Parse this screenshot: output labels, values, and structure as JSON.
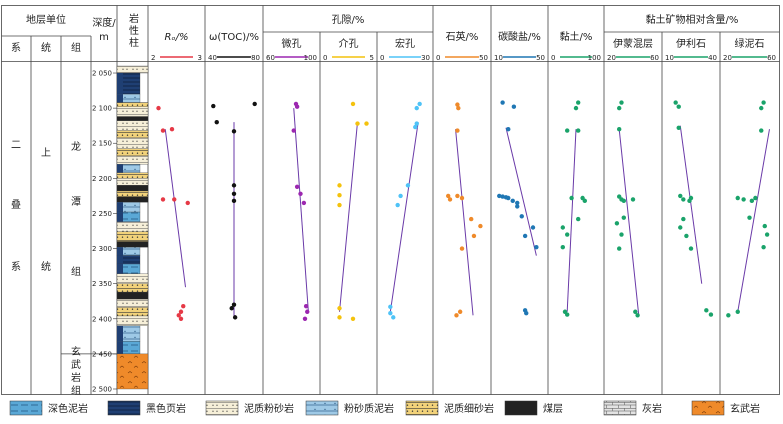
{
  "header": {
    "strat_unit": "地层单位",
    "system": "系",
    "series": "统",
    "formation": "组",
    "depth": "深度/",
    "depth_unit": "m",
    "lith_l1": "岩",
    "lith_l2": "性",
    "lith_l3": "柱",
    "ro": "Rₒ/%",
    "toc": "ω(TOC)/%",
    "porosity": "孔隙/%",
    "quartz": "石英/%",
    "carbonate": "碳酸盐/%",
    "clay": "黏土/%",
    "clay_minerals": "黏土矿物相对含量/%"
  },
  "strat": {
    "system": [
      "二",
      "叠",
      "系"
    ],
    "series": [
      "上",
      "统"
    ],
    "formation1": [
      "龙",
      "潭",
      "组"
    ],
    "formation2": [
      "玄",
      "武",
      "岩",
      "组"
    ]
  },
  "depth_ticks": [
    "2 050",
    "2 100",
    "2 150",
    "2 200",
    "2 250",
    "2 300",
    "2 350",
    "2 400",
    "2 450",
    "2 500"
  ],
  "legend": [
    {
      "label": "深色泥岩",
      "pattern": "dark-mudstone"
    },
    {
      "label": "黑色页岩",
      "pattern": "black-shale"
    },
    {
      "label": "泥质粉砂岩",
      "pattern": "argillaceous-siltstone"
    },
    {
      "label": "粉砂质泥岩",
      "pattern": "silty-mudstone"
    },
    {
      "label": "泥质细砂岩",
      "pattern": "argillaceous-fine-sandstone"
    },
    {
      "label": "煤层",
      "pattern": "coal"
    },
    {
      "label": "灰岩",
      "pattern": "limestone"
    },
    {
      "label": "玄武岩",
      "pattern": "basalt"
    }
  ],
  "chart_data": {
    "type": "scatter",
    "y_axis": {
      "label": "深度/m",
      "range": [
        2040,
        2500
      ],
      "inverted": true
    },
    "tracks": [
      {
        "id": "ro",
        "label": "Rₒ/%",
        "min": 2,
        "max": 3,
        "ticks": [
          "2",
          "3"
        ],
        "color": "#e63946",
        "points": [
          [
            2.1,
            2100
          ],
          [
            2.2,
            2132
          ],
          [
            2.4,
            2130
          ],
          [
            2.2,
            2230
          ],
          [
            2.45,
            2230
          ],
          [
            2.75,
            2235
          ],
          [
            2.65,
            2382
          ],
          [
            2.6,
            2390
          ],
          [
            2.55,
            2395
          ],
          [
            2.6,
            2400
          ]
        ],
        "trend": [
          [
            2.25,
            2130
          ],
          [
            2.7,
            2355
          ]
        ]
      },
      {
        "id": "toc",
        "label": "ω(TOC)/%",
        "min": 40,
        "max": 80,
        "ticks": [
          "40",
          "80"
        ],
        "color": "#111111",
        "points": [
          [
            42,
            2097
          ],
          [
            45,
            2120
          ],
          [
            78,
            2094
          ],
          [
            60,
            2133
          ],
          [
            60,
            2210
          ],
          [
            60,
            2222
          ],
          [
            60,
            2232
          ],
          [
            58,
            2385
          ],
          [
            60,
            2380
          ],
          [
            61,
            2398
          ]
        ],
        "trend": [
          [
            60,
            2120
          ],
          [
            60,
            2400
          ]
        ]
      },
      {
        "id": "micropore",
        "label": "微孔",
        "min": 60,
        "max": 100,
        "ticks": [
          "60",
          "100"
        ],
        "color": "#9c27b0",
        "points": [
          [
            84,
            2094
          ],
          [
            85,
            2098
          ],
          [
            82,
            2132
          ],
          [
            85,
            2212
          ],
          [
            88,
            2222
          ],
          [
            91,
            2235
          ],
          [
            93,
            2382
          ],
          [
            94,
            2390
          ],
          [
            92,
            2400
          ]
        ],
        "trend": [
          [
            82,
            2100
          ],
          [
            95,
            2390
          ]
        ]
      },
      {
        "id": "mesopore",
        "label": "介孔",
        "min": 0,
        "max": 5,
        "ticks": [
          "0",
          "5"
        ],
        "color": "#f4c20d",
        "points": [
          [
            3,
            2094
          ],
          [
            3.5,
            2122
          ],
          [
            4.5,
            2122
          ],
          [
            1.5,
            2210
          ],
          [
            1.5,
            2224
          ],
          [
            1.5,
            2238
          ],
          [
            1.5,
            2385
          ],
          [
            1.5,
            2398
          ],
          [
            3,
            2400
          ]
        ],
        "trend": [
          [
            3.5,
            2120
          ],
          [
            1.5,
            2390
          ]
        ]
      },
      {
        "id": "macropore",
        "label": "宏孔",
        "min": 0,
        "max": 30,
        "ticks": [
          "0",
          "30"
        ],
        "color": "#4fc3f7",
        "points": [
          [
            25,
            2094
          ],
          [
            23,
            2100
          ],
          [
            23,
            2122
          ],
          [
            22,
            2127
          ],
          [
            17,
            2210
          ],
          [
            12,
            2225
          ],
          [
            10,
            2238
          ],
          [
            5,
            2383
          ],
          [
            5,
            2392
          ],
          [
            7,
            2398
          ]
        ],
        "trend": [
          [
            24,
            2120
          ],
          [
            5,
            2390
          ]
        ]
      },
      {
        "id": "quartz",
        "label": "石英/%",
        "min": 0,
        "max": 50,
        "ticks": [
          "0",
          "50"
        ],
        "color": "#ef8a2a",
        "points": [
          [
            20,
            2095
          ],
          [
            21,
            2100
          ],
          [
            20,
            2132
          ],
          [
            10,
            2225
          ],
          [
            12,
            2230
          ],
          [
            20,
            2225
          ],
          [
            25,
            2228
          ],
          [
            35,
            2258
          ],
          [
            45,
            2268
          ],
          [
            38,
            2282
          ],
          [
            25,
            2300
          ],
          [
            23,
            2390
          ],
          [
            19,
            2395
          ]
        ],
        "trend": [
          [
            18,
            2130
          ],
          [
            37,
            2395
          ]
        ]
      },
      {
        "id": "carbonate",
        "label": "碳酸盐/%",
        "min": 10,
        "max": 50,
        "ticks": [
          "10",
          "50"
        ],
        "color": "#1f77b4",
        "points": [
          [
            15,
            2092
          ],
          [
            25,
            2098
          ],
          [
            20,
            2130
          ],
          [
            12,
            2225
          ],
          [
            15,
            2226
          ],
          [
            18,
            2227
          ],
          [
            20,
            2228
          ],
          [
            24,
            2232
          ],
          [
            28,
            2235
          ],
          [
            28,
            2240
          ],
          [
            32,
            2254
          ],
          [
            42,
            2270
          ],
          [
            35,
            2282
          ],
          [
            45,
            2298
          ],
          [
            35,
            2388
          ],
          [
            36,
            2392
          ]
        ],
        "trend": [
          [
            18,
            2128
          ],
          [
            45,
            2310
          ]
        ]
      },
      {
        "id": "clay",
        "label": "黏土/%",
        "min": 0,
        "max": 100,
        "ticks": [
          "0",
          "100"
        ],
        "color": "#1aa36a",
        "points": [
          [
            55,
            2092
          ],
          [
            50,
            2100
          ],
          [
            30,
            2132
          ],
          [
            55,
            2132
          ],
          [
            40,
            2228
          ],
          [
            65,
            2228
          ],
          [
            70,
            2232
          ],
          [
            55,
            2258
          ],
          [
            20,
            2270
          ],
          [
            30,
            2280
          ],
          [
            20,
            2298
          ],
          [
            25,
            2390
          ],
          [
            30,
            2394
          ]
        ],
        "trend": [
          [
            50,
            2130
          ],
          [
            30,
            2390
          ]
        ]
      },
      {
        "id": "illite_smectite",
        "label": "伊蒙混层",
        "min": 20,
        "max": 60,
        "ticks": [
          "20",
          "60"
        ],
        "color": "#1aa36a",
        "points": [
          [
            30,
            2092
          ],
          [
            28,
            2100
          ],
          [
            28,
            2130
          ],
          [
            28,
            2226
          ],
          [
            30,
            2230
          ],
          [
            32,
            2232
          ],
          [
            40,
            2230
          ],
          [
            32,
            2256
          ],
          [
            26,
            2264
          ],
          [
            30,
            2280
          ],
          [
            28,
            2300
          ],
          [
            42,
            2390
          ],
          [
            44,
            2395
          ]
        ],
        "trend": [
          [
            28,
            2130
          ],
          [
            45,
            2395
          ]
        ]
      },
      {
        "id": "illite",
        "label": "伊利石",
        "min": 10,
        "max": 40,
        "ticks": [
          "10",
          "40"
        ],
        "color": "#1aa36a",
        "points": [
          [
            15,
            2092
          ],
          [
            17,
            2098
          ],
          [
            17,
            2128
          ],
          [
            18,
            2225
          ],
          [
            20,
            2230
          ],
          [
            24,
            2232
          ],
          [
            25,
            2228
          ],
          [
            20,
            2258
          ],
          [
            18,
            2270
          ],
          [
            22,
            2282
          ],
          [
            25,
            2300
          ],
          [
            35,
            2388
          ],
          [
            38,
            2394
          ]
        ],
        "trend": [
          [
            18,
            2125
          ],
          [
            32,
            2350
          ]
        ]
      },
      {
        "id": "chlorite",
        "label": "绿泥石",
        "min": 20,
        "max": 60,
        "ticks": [
          "20",
          "60"
        ],
        "color": "#1aa36a",
        "points": [
          [
            52,
            2092
          ],
          [
            50,
            2100
          ],
          [
            50,
            2132
          ],
          [
            30,
            2228
          ],
          [
            35,
            2230
          ],
          [
            42,
            2232
          ],
          [
            45,
            2228
          ],
          [
            40,
            2256
          ],
          [
            53,
            2268
          ],
          [
            55,
            2280
          ],
          [
            52,
            2298
          ],
          [
            30,
            2390
          ],
          [
            22,
            2395
          ]
        ],
        "trend": [
          [
            57,
            2130
          ],
          [
            30,
            2390
          ]
        ]
      }
    ]
  }
}
